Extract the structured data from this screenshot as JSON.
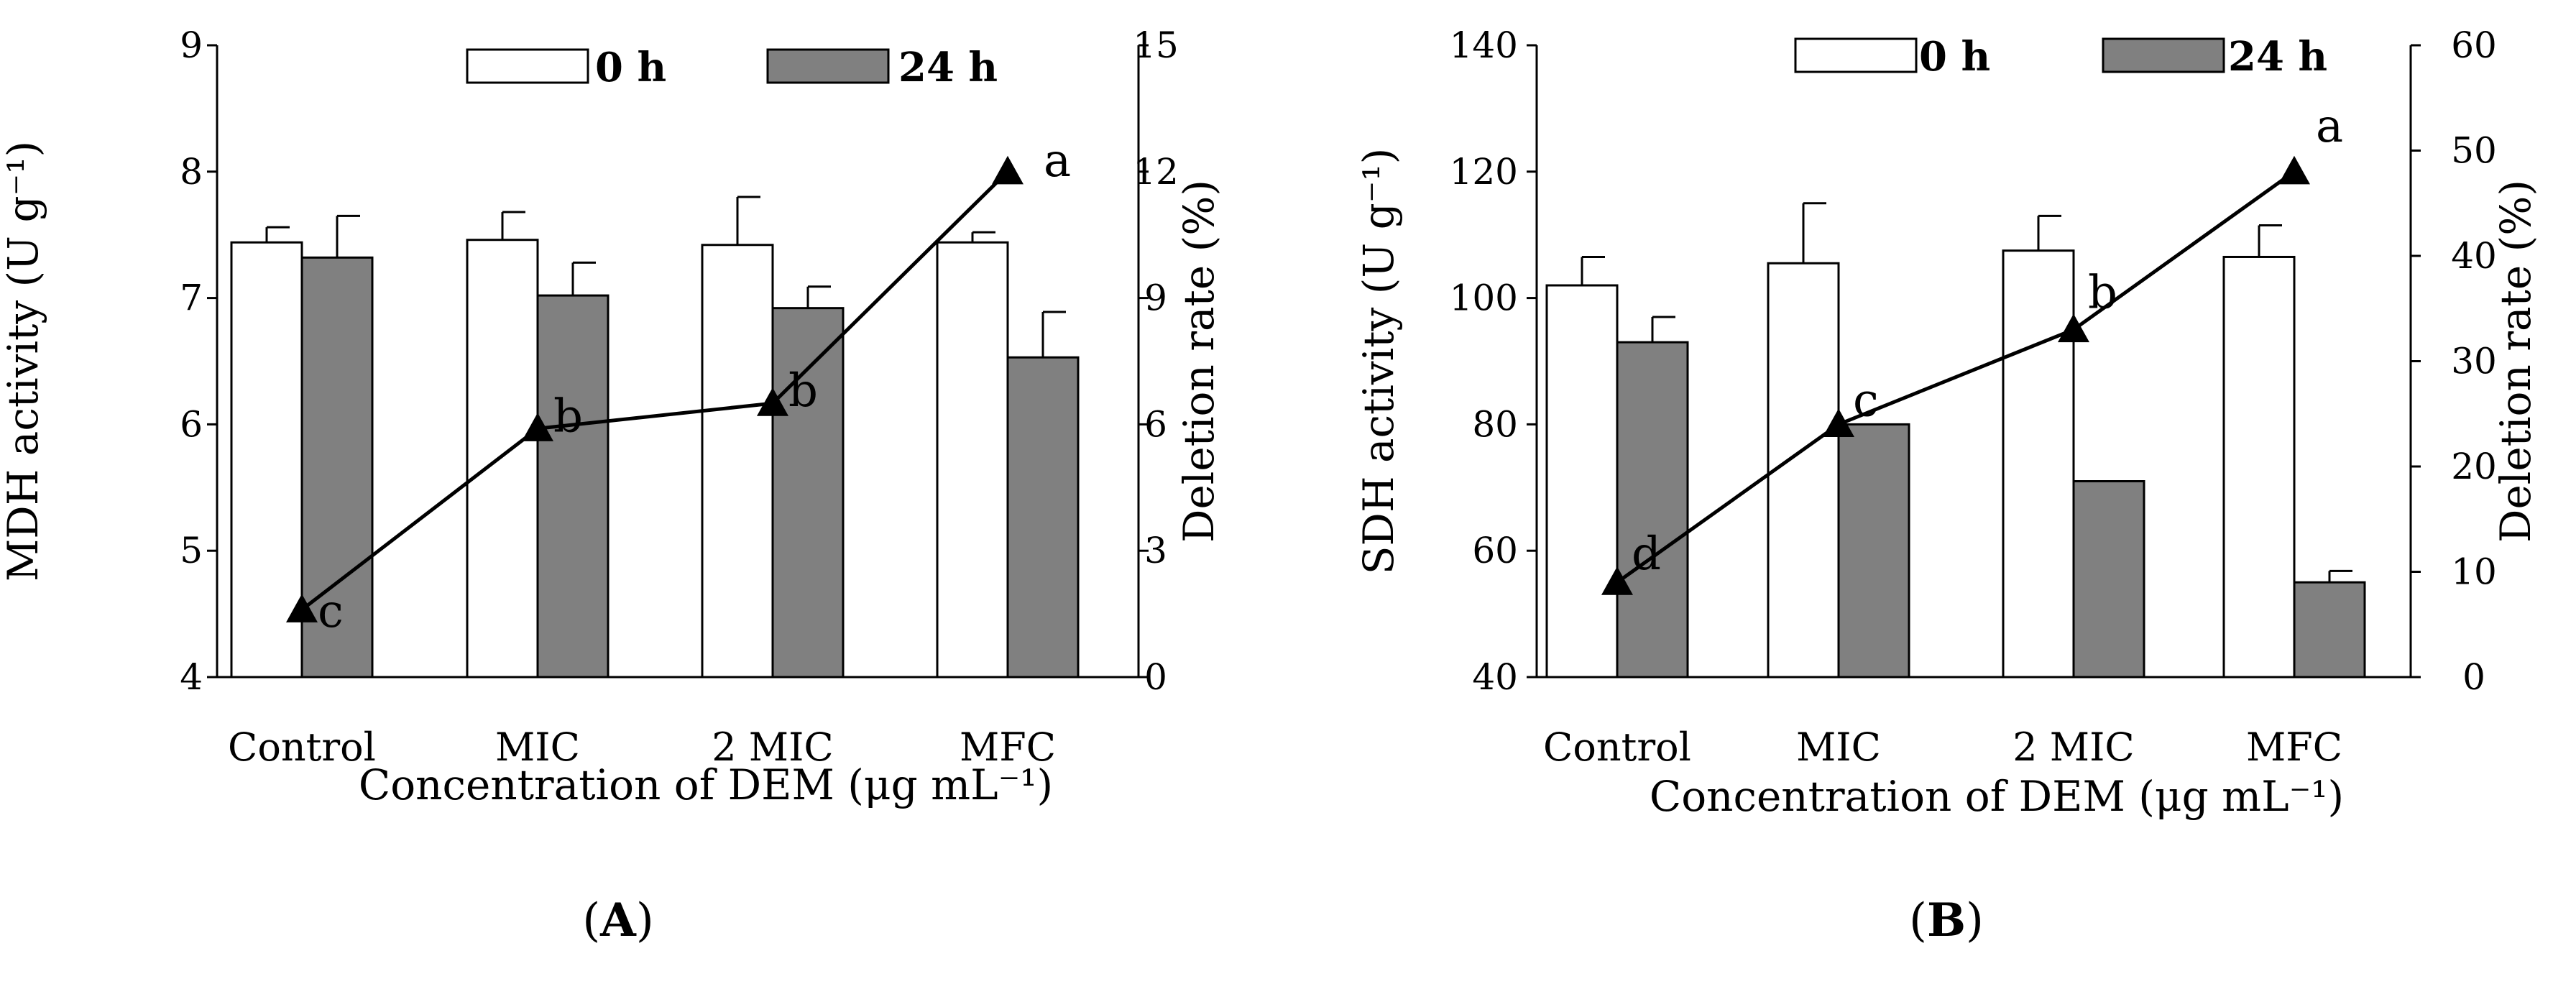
{
  "legend": {
    "series0": "0 h",
    "series1": "24 h"
  },
  "panels": [
    {
      "label_open": "(",
      "label_letter": "A",
      "label_close": ")"
    },
    {
      "label_open": "(",
      "label_letter": "B",
      "label_close": ")"
    }
  ],
  "chart_data": [
    {
      "type": "bar",
      "panel": "A",
      "categories": [
        "Control",
        "MIC",
        "2 MIC",
        "MFC"
      ],
      "series": [
        {
          "name": "0 h",
          "values": [
            7.44,
            7.46,
            7.42,
            7.44
          ],
          "errors": [
            0.12,
            0.22,
            0.38,
            0.08
          ],
          "color": "#ffffff"
        },
        {
          "name": "24 h",
          "values": [
            7.32,
            7.02,
            6.92,
            6.53
          ],
          "errors": [
            0.33,
            0.26,
            0.17,
            0.36
          ],
          "color": "#808080"
        }
      ],
      "line": {
        "name": "Deletion rate",
        "values": [
          1.6,
          5.9,
          6.5,
          12.0
        ],
        "labels": [
          "c",
          "b",
          "b",
          "a"
        ],
        "axis": "right"
      },
      "xlabel": "Concentration of DEM (μg mL⁻¹)",
      "ylabel": "MDH activity (U g⁻¹)",
      "y2label": "Deletion rate (%)",
      "ylim": [
        4,
        9
      ],
      "yticks": [
        "4",
        "5",
        "6",
        "7",
        "8",
        "9"
      ],
      "y2lim": [
        0,
        15
      ],
      "y2ticks": [
        "0",
        "3",
        "6",
        "9",
        "12",
        "15"
      ]
    },
    {
      "type": "bar",
      "panel": "B",
      "categories": [
        "Control",
        "MIC",
        "2 MIC",
        "MFC"
      ],
      "series": [
        {
          "name": "0 h",
          "values": [
            102,
            105.5,
            107.5,
            106.5
          ],
          "errors": [
            4.5,
            9.5,
            5.5,
            5
          ],
          "color": "#ffffff"
        },
        {
          "name": "24 h",
          "values": [
            93,
            80,
            71,
            55
          ],
          "errors": [
            4,
            0,
            0,
            1.8
          ],
          "color": "#808080"
        }
      ],
      "line": {
        "name": "Deletion rate",
        "values": [
          9,
          24,
          33,
          48
        ],
        "labels": [
          "d",
          "c",
          "b",
          "a"
        ],
        "axis": "right"
      },
      "xlabel": "Concentration of DEM (μg mL⁻¹)",
      "ylabel": "SDH activity (U g⁻¹)",
      "y2label": "Deletion rate (%)",
      "ylim": [
        40,
        140
      ],
      "yticks": [
        "40",
        "60",
        "80",
        "100",
        "120",
        "140"
      ],
      "y2lim": [
        0,
        60
      ],
      "y2ticks": [
        "0",
        "10",
        "20",
        "30",
        "40",
        "50",
        "60"
      ]
    }
  ]
}
